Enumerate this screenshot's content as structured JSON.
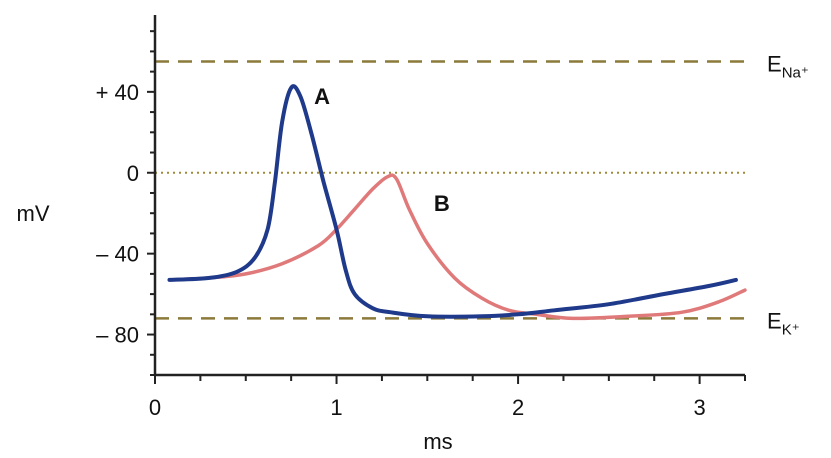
{
  "chart_data": {
    "type": "line",
    "xlabel": "ms",
    "ylabel": "mV",
    "xlim": [
      0,
      3.25
    ],
    "ylim": [
      -100,
      78
    ],
    "x_ticks": [
      {
        "value": 0,
        "label": "0"
      },
      {
        "value": 1,
        "label": "1"
      },
      {
        "value": 2,
        "label": "2"
      },
      {
        "value": 3,
        "label": "3"
      }
    ],
    "y_ticks": [
      {
        "value": 40,
        "label": "+ 40"
      },
      {
        "value": 0,
        "label": "0"
      },
      {
        "value": -40,
        "label": "– 40"
      },
      {
        "value": -80,
        "label": "– 80"
      }
    ],
    "reference_lines": [
      {
        "id": "ena",
        "y": 55,
        "label_main": "E",
        "label_sub": "Na⁺",
        "style": "dashed",
        "color": "#8c7a3a"
      },
      {
        "id": "zero",
        "y": 0,
        "style": "dotted",
        "color": "#a08a3a"
      },
      {
        "id": "ek",
        "y": -72,
        "label_main": "E",
        "label_sub": "K⁺",
        "style": "dashed",
        "color": "#8c7a3a"
      }
    ],
    "series": [
      {
        "name": "A",
        "color": "#1f3a8a",
        "x": [
          0.08,
          0.3,
          0.45,
          0.55,
          0.62,
          0.66,
          0.7,
          0.75,
          0.8,
          0.86,
          0.93,
          1.0,
          1.05,
          1.1,
          1.2,
          1.3,
          1.5,
          1.8,
          2.0,
          2.2,
          2.5,
          2.8,
          3.05,
          3.2
        ],
        "y": [
          -53,
          -52,
          -49,
          -42,
          -28,
          -5,
          25,
          42,
          38,
          20,
          -5,
          -28,
          -48,
          -60,
          -67,
          -69,
          -71,
          -71,
          -70,
          -68,
          -65,
          -60,
          -56,
          -53
        ]
      },
      {
        "name": "B",
        "color": "#e07a7a",
        "x": [
          0.08,
          0.3,
          0.5,
          0.7,
          0.9,
          1.0,
          1.1,
          1.2,
          1.28,
          1.33,
          1.4,
          1.5,
          1.65,
          1.8,
          1.95,
          2.1,
          2.3,
          2.6,
          2.9,
          3.1,
          3.25
        ],
        "y": [
          -53,
          -52,
          -50,
          -45,
          -36,
          -28,
          -18,
          -8,
          -2,
          -3,
          -18,
          -35,
          -52,
          -62,
          -68,
          -70,
          -72,
          -71,
          -69,
          -64,
          -58
        ]
      }
    ],
    "series_label_positions": [
      {
        "name": "A",
        "x": 0.92,
        "y": 38
      },
      {
        "name": "B",
        "x": 1.58,
        "y": -15
      }
    ]
  }
}
